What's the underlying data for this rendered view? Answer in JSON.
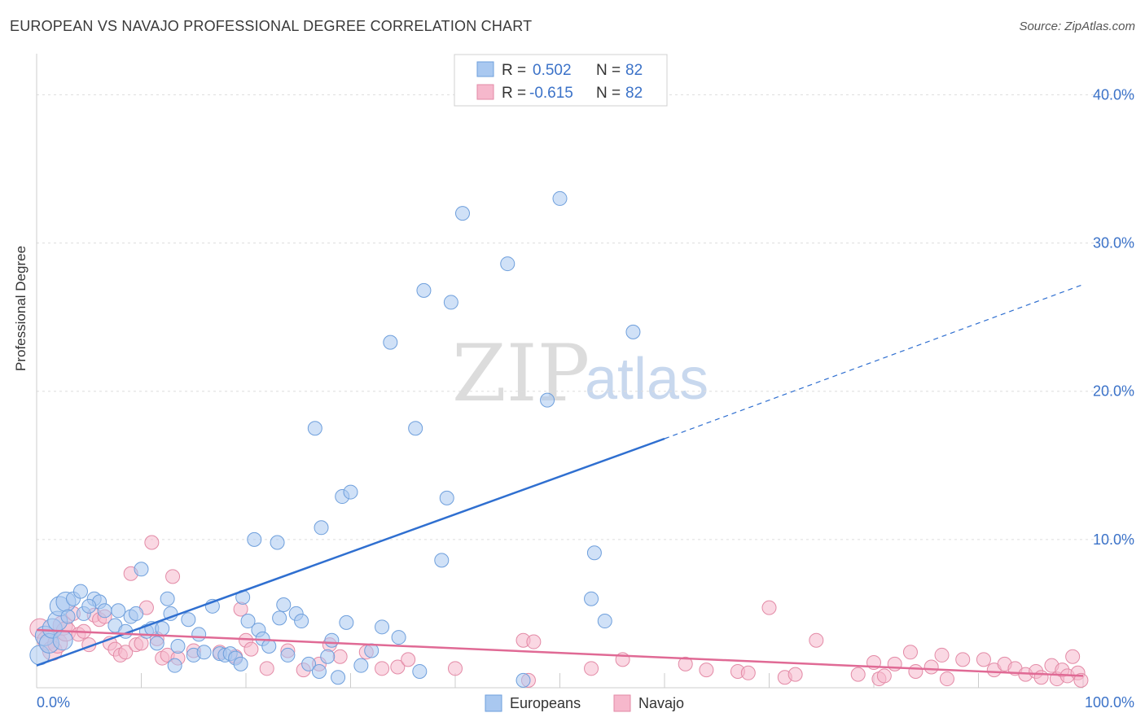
{
  "title": "EUROPEAN VS NAVAJO PROFESSIONAL DEGREE CORRELATION CHART",
  "source": "Source: ZipAtlas.com",
  "watermark": {
    "zip": "ZIP",
    "atlas": "atlas"
  },
  "colors": {
    "europeans_fill": "#a9c8f0",
    "europeans_stroke": "#6e9fdc",
    "europeans_line": "#2f6fd0",
    "navajo_fill": "#f6b8cc",
    "navajo_stroke": "#e38aa6",
    "navajo_line": "#e06a95",
    "grid": "#dddddd",
    "tick_text": "#3b72c8"
  },
  "stats": [
    {
      "r_label": "R =",
      "r_value": "0.502",
      "n_label": "N =",
      "n_value": "82"
    },
    {
      "r_label": "R =",
      "r_value": "-0.615",
      "n_label": "N =",
      "n_value": "82"
    }
  ],
  "chart_data": {
    "type": "scatter",
    "title": "EUROPEAN VS NAVAJO PROFESSIONAL DEGREE CORRELATION CHART",
    "xlabel": "",
    "ylabel": "Professional Degree",
    "xlim": [
      0,
      100
    ],
    "ylim": [
      0,
      42
    ],
    "x_tick_labels": [
      "0.0%",
      "100.0%"
    ],
    "y_ticks": [
      10,
      20,
      30,
      40
    ],
    "y_tick_labels": [
      "10.0%",
      "20.0%",
      "30.0%",
      "40.0%"
    ],
    "legend": [
      "Europeans",
      "Navajo"
    ],
    "series": [
      {
        "name": "Europeans",
        "trend": {
          "x0": 0,
          "y0": 1.5,
          "x1": 60,
          "y1": 16.8,
          "dash_to_x": 100,
          "dash_to_y": 27.2
        },
        "points": [
          [
            0.3,
            2.2
          ],
          [
            0.8,
            3.5
          ],
          [
            1.2,
            3.0
          ],
          [
            1.5,
            4.0
          ],
          [
            2.0,
            4.5
          ],
          [
            2.2,
            5.5
          ],
          [
            2.8,
            5.8
          ],
          [
            3.5,
            6.0
          ],
          [
            4.2,
            6.5
          ],
          [
            4.5,
            5.0
          ],
          [
            5.5,
            6.0
          ],
          [
            6.0,
            5.8
          ],
          [
            6.5,
            5.2
          ],
          [
            7.5,
            4.2
          ],
          [
            7.8,
            5.2
          ],
          [
            8.5,
            3.8
          ],
          [
            9.0,
            4.8
          ],
          [
            9.5,
            5.0
          ],
          [
            10.0,
            8.0
          ],
          [
            10.5,
            3.8
          ],
          [
            11.0,
            4.0
          ],
          [
            11.5,
            3.0
          ],
          [
            12.0,
            4.0
          ],
          [
            12.5,
            6.0
          ],
          [
            12.8,
            5.0
          ],
          [
            13.2,
            1.5
          ],
          [
            13.5,
            2.8
          ],
          [
            14.5,
            4.6
          ],
          [
            15.0,
            2.2
          ],
          [
            15.5,
            3.6
          ],
          [
            16.0,
            2.4
          ],
          [
            16.8,
            5.5
          ],
          [
            17.5,
            2.3
          ],
          [
            18.0,
            2.2
          ],
          [
            18.5,
            2.3
          ],
          [
            19.0,
            2.0
          ],
          [
            19.5,
            1.6
          ],
          [
            19.7,
            6.1
          ],
          [
            20.2,
            4.5
          ],
          [
            20.8,
            10.0
          ],
          [
            21.2,
            3.9
          ],
          [
            21.6,
            3.3
          ],
          [
            22.2,
            2.8
          ],
          [
            23.0,
            9.8
          ],
          [
            23.2,
            4.7
          ],
          [
            23.6,
            5.6
          ],
          [
            24.0,
            2.2
          ],
          [
            24.8,
            5.0
          ],
          [
            25.3,
            4.5
          ],
          [
            26.0,
            1.6
          ],
          [
            26.6,
            17.5
          ],
          [
            27.0,
            1.1
          ],
          [
            27.2,
            10.8
          ],
          [
            27.8,
            2.1
          ],
          [
            28.2,
            3.2
          ],
          [
            28.8,
            0.7
          ],
          [
            29.2,
            12.9
          ],
          [
            29.6,
            4.4
          ],
          [
            30.0,
            13.2
          ],
          [
            31.0,
            1.5
          ],
          [
            32.0,
            2.5
          ],
          [
            33.0,
            4.1
          ],
          [
            33.8,
            23.3
          ],
          [
            34.6,
            3.4
          ],
          [
            36.2,
            17.5
          ],
          [
            36.6,
            1.1
          ],
          [
            37.0,
            26.8
          ],
          [
            38.7,
            8.6
          ],
          [
            39.2,
            12.8
          ],
          [
            39.6,
            26.0
          ],
          [
            40.7,
            32.0
          ],
          [
            45.0,
            28.6
          ],
          [
            46.5,
            0.5
          ],
          [
            48.8,
            19.4
          ],
          [
            50.0,
            33.0
          ],
          [
            53.0,
            6.0
          ],
          [
            53.3,
            9.1
          ],
          [
            54.3,
            4.5
          ],
          [
            57.0,
            24.0
          ],
          [
            5.0,
            5.5
          ],
          [
            3.0,
            4.8
          ],
          [
            2.5,
            3.2
          ]
        ]
      },
      {
        "name": "Navajo",
        "trend": {
          "x0": 0,
          "y0": 3.9,
          "x1": 100,
          "y1": 0.8
        },
        "points": [
          [
            0.3,
            4.0
          ],
          [
            1.0,
            3.2
          ],
          [
            1.5,
            2.5
          ],
          [
            2.0,
            3.0
          ],
          [
            2.5,
            4.2
          ],
          [
            2.8,
            3.8
          ],
          [
            3.5,
            5.0
          ],
          [
            4.0,
            3.6
          ],
          [
            4.5,
            3.8
          ],
          [
            5.0,
            2.9
          ],
          [
            5.5,
            4.9
          ],
          [
            6.0,
            4.6
          ],
          [
            6.5,
            4.8
          ],
          [
            7.0,
            3.0
          ],
          [
            7.5,
            2.6
          ],
          [
            8.0,
            2.2
          ],
          [
            8.5,
            2.4
          ],
          [
            9.0,
            7.7
          ],
          [
            9.5,
            2.9
          ],
          [
            10.0,
            3.0
          ],
          [
            10.5,
            5.4
          ],
          [
            11.0,
            9.8
          ],
          [
            11.5,
            3.3
          ],
          [
            12.0,
            2.0
          ],
          [
            12.5,
            2.2
          ],
          [
            13.0,
            7.5
          ],
          [
            13.5,
            2.0
          ],
          [
            15.0,
            2.5
          ],
          [
            17.5,
            2.4
          ],
          [
            19.0,
            2.1
          ],
          [
            19.5,
            5.3
          ],
          [
            20.0,
            3.2
          ],
          [
            20.5,
            2.6
          ],
          [
            22.0,
            1.3
          ],
          [
            24.0,
            2.5
          ],
          [
            25.5,
            1.2
          ],
          [
            27.0,
            1.6
          ],
          [
            28.0,
            2.9
          ],
          [
            29.0,
            2.1
          ],
          [
            31.5,
            2.4
          ],
          [
            33.0,
            1.3
          ],
          [
            34.5,
            1.4
          ],
          [
            35.5,
            1.9
          ],
          [
            40.0,
            1.3
          ],
          [
            46.5,
            3.2
          ],
          [
            47.0,
            0.5
          ],
          [
            47.5,
            3.1
          ],
          [
            53.0,
            1.3
          ],
          [
            56.0,
            1.9
          ],
          [
            62.0,
            1.6
          ],
          [
            64.0,
            1.2
          ],
          [
            67.0,
            1.1
          ],
          [
            68.0,
            1.0
          ],
          [
            70.0,
            5.4
          ],
          [
            71.5,
            0.7
          ],
          [
            72.5,
            0.9
          ],
          [
            74.5,
            3.2
          ],
          [
            78.5,
            0.9
          ],
          [
            80.5,
            0.6
          ],
          [
            82.0,
            1.6
          ],
          [
            83.5,
            2.4
          ],
          [
            84.0,
            1.1
          ],
          [
            85.5,
            1.4
          ],
          [
            87.0,
            0.6
          ],
          [
            90.5,
            1.9
          ],
          [
            91.5,
            1.2
          ],
          [
            92.5,
            1.6
          ],
          [
            93.5,
            1.3
          ],
          [
            94.5,
            0.9
          ],
          [
            95.5,
            1.1
          ],
          [
            96.0,
            0.7
          ],
          [
            97.0,
            1.5
          ],
          [
            97.5,
            0.6
          ],
          [
            98.0,
            1.2
          ],
          [
            98.5,
            0.8
          ],
          [
            99.0,
            2.1
          ],
          [
            99.5,
            1.0
          ],
          [
            99.8,
            0.5
          ],
          [
            88.5,
            1.9
          ],
          [
            86.5,
            2.2
          ],
          [
            80.0,
            1.7
          ],
          [
            81.0,
            0.8
          ]
        ]
      }
    ]
  }
}
